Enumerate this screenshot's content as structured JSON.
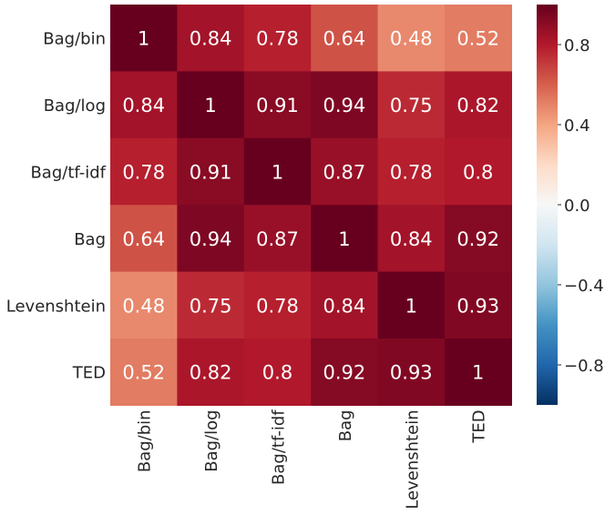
{
  "chart_data": {
    "type": "heatmap",
    "rows": [
      "Bag/bin",
      "Bag/log",
      "Bag/tf-idf",
      "Bag",
      "Levenshtein",
      "TED"
    ],
    "columns": [
      "Bag/bin",
      "Bag/log",
      "Bag/tf-idf",
      "Bag",
      "Levenshtein",
      "TED"
    ],
    "values": [
      [
        1,
        0.84,
        0.78,
        0.64,
        0.48,
        0.52
      ],
      [
        0.84,
        1,
        0.91,
        0.94,
        0.75,
        0.82
      ],
      [
        0.78,
        0.91,
        1,
        0.87,
        0.78,
        0.8
      ],
      [
        0.64,
        0.94,
        0.87,
        1,
        0.84,
        0.92
      ],
      [
        0.48,
        0.75,
        0.78,
        0.84,
        1,
        0.93
      ],
      [
        0.52,
        0.82,
        0.8,
        0.92,
        0.93,
        1
      ]
    ],
    "vmin": -1,
    "vmax": 1,
    "colormap": "RdBu_r",
    "colorbar": {
      "ticks": [
        0.8,
        0.4,
        0.0,
        -0.4,
        -0.8
      ],
      "tick_labels": [
        "0.8",
        "0.4",
        "0.0",
        "−0.4",
        "−0.8"
      ]
    },
    "annotations": true
  }
}
